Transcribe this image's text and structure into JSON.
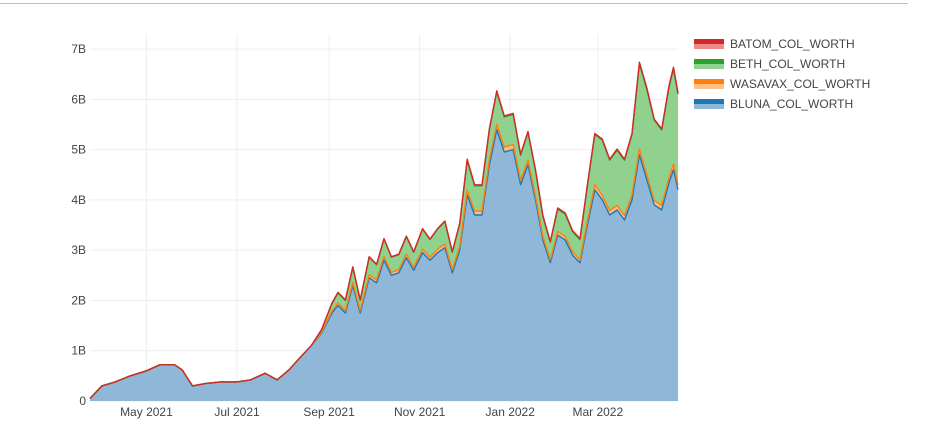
{
  "chart_data": {
    "type": "area",
    "stacked": true,
    "title": "",
    "xlabel": "",
    "ylabel": "",
    "x_ticks": [
      {
        "label": "May 2021",
        "date": "2021-05-01"
      },
      {
        "label": "Jul 2021",
        "date": "2021-07-01"
      },
      {
        "label": "Sep 2021",
        "date": "2021-09-01"
      },
      {
        "label": "Nov 2021",
        "date": "2021-11-01"
      },
      {
        "label": "Jan 2022",
        "date": "2022-01-01"
      },
      {
        "label": "Mar 2022",
        "date": "2022-03-01"
      }
    ],
    "xlim": [
      "2021-03-24",
      "2022-04-24"
    ],
    "y_ticks": [
      {
        "label": "0",
        "value": 0
      },
      {
        "label": "1B",
        "value": 1
      },
      {
        "label": "2B",
        "value": 2
      },
      {
        "label": "3B",
        "value": 3
      },
      {
        "label": "4B",
        "value": 4
      },
      {
        "label": "5B",
        "value": 5
      },
      {
        "label": "6B",
        "value": 6
      },
      {
        "label": "7B",
        "value": 7
      }
    ],
    "ylim": [
      0,
      7.3
    ],
    "y_unit": "B",
    "grid": true,
    "legend_position": "top-right",
    "x": [
      "2021-03-24",
      "2021-04-01",
      "2021-04-10",
      "2021-04-20",
      "2021-05-01",
      "2021-05-10",
      "2021-05-20",
      "2021-05-25",
      "2021-06-01",
      "2021-06-10",
      "2021-06-20",
      "2021-07-01",
      "2021-07-10",
      "2021-07-20",
      "2021-07-28",
      "2021-08-05",
      "2021-08-12",
      "2021-08-20",
      "2021-08-27",
      "2021-09-03",
      "2021-09-07",
      "2021-09-12",
      "2021-09-17",
      "2021-09-22",
      "2021-09-28",
      "2021-10-03",
      "2021-10-08",
      "2021-10-13",
      "2021-10-18",
      "2021-10-23",
      "2021-10-28",
      "2021-11-03",
      "2021-11-08",
      "2021-11-13",
      "2021-11-18",
      "2021-11-23",
      "2021-11-28",
      "2021-12-03",
      "2021-12-08",
      "2021-12-13",
      "2021-12-18",
      "2021-12-23",
      "2021-12-28",
      "2022-01-03",
      "2022-01-08",
      "2022-01-13",
      "2022-01-18",
      "2022-01-23",
      "2022-01-28",
      "2022-02-02",
      "2022-02-07",
      "2022-02-12",
      "2022-02-17",
      "2022-02-22",
      "2022-02-27",
      "2022-03-04",
      "2022-03-09",
      "2022-03-14",
      "2022-03-19",
      "2022-03-24",
      "2022-03-29",
      "2022-04-03",
      "2022-04-08",
      "2022-04-13",
      "2022-04-18",
      "2022-04-21",
      "2022-04-24"
    ],
    "series": [
      {
        "name": "BLUNA_COL_WORTH",
        "color": "#1f77b4",
        "values": [
          0.05,
          0.3,
          0.38,
          0.5,
          0.6,
          0.72,
          0.72,
          0.62,
          0.3,
          0.35,
          0.38,
          0.38,
          0.42,
          0.55,
          0.42,
          0.62,
          0.85,
          1.1,
          1.35,
          1.75,
          1.9,
          1.75,
          2.3,
          1.75,
          2.45,
          2.35,
          2.8,
          2.5,
          2.55,
          2.85,
          2.6,
          2.95,
          2.8,
          2.95,
          3.05,
          2.55,
          3.0,
          4.1,
          3.7,
          3.7,
          4.7,
          5.4,
          4.95,
          5.0,
          4.3,
          4.7,
          4.0,
          3.2,
          2.75,
          3.3,
          3.2,
          2.9,
          2.75,
          3.5,
          4.2,
          4.0,
          3.7,
          3.8,
          3.6,
          4.0,
          4.9,
          4.4,
          3.9,
          3.8,
          4.35,
          4.6,
          4.2
        ]
      },
      {
        "name": "WASAVAX_COL_WORTH",
        "color": "#ff7f0e",
        "values": [
          0,
          0,
          0,
          0,
          0,
          0,
          0,
          0,
          0,
          0,
          0,
          0,
          0,
          0,
          0,
          0,
          0,
          0,
          0.02,
          0.04,
          0.05,
          0.05,
          0.06,
          0.05,
          0.06,
          0.06,
          0.07,
          0.06,
          0.06,
          0.07,
          0.06,
          0.07,
          0.06,
          0.07,
          0.07,
          0.06,
          0.07,
          0.09,
          0.08,
          0.08,
          0.1,
          0.1,
          0.1,
          0.1,
          0.09,
          0.09,
          0.08,
          0.07,
          0.06,
          0.07,
          0.07,
          0.07,
          0.06,
          0.08,
          0.1,
          0.09,
          0.09,
          0.09,
          0.09,
          0.1,
          0.11,
          0.1,
          0.09,
          0.09,
          0.1,
          0.11,
          0.1
        ]
      },
      {
        "name": "BETH_COL_WORTH",
        "color": "#2ca02c",
        "values": [
          0,
          0,
          0,
          0,
          0,
          0,
          0,
          0,
          0,
          0,
          0,
          0,
          0,
          0,
          0,
          0,
          0,
          0,
          0.05,
          0.15,
          0.2,
          0.2,
          0.3,
          0.2,
          0.35,
          0.3,
          0.35,
          0.3,
          0.3,
          0.35,
          0.3,
          0.4,
          0.35,
          0.4,
          0.45,
          0.35,
          0.45,
          0.6,
          0.5,
          0.5,
          0.6,
          0.65,
          0.6,
          0.6,
          0.5,
          0.55,
          0.5,
          0.4,
          0.35,
          0.45,
          0.45,
          0.4,
          0.4,
          0.7,
          1.0,
          1.1,
          1.0,
          1.1,
          1.1,
          1.2,
          1.7,
          1.7,
          1.6,
          1.5,
          1.8,
          1.9,
          1.8
        ]
      },
      {
        "name": "BATOM_COL_WORTH",
        "color": "#d62728",
        "values": [
          0,
          0,
          0,
          0,
          0,
          0,
          0,
          0,
          0,
          0,
          0,
          0,
          0,
          0,
          0,
          0,
          0,
          0,
          0,
          0.01,
          0.01,
          0.01,
          0.01,
          0.01,
          0.01,
          0.01,
          0.01,
          0.01,
          0.01,
          0.01,
          0.01,
          0.01,
          0.01,
          0.01,
          0.01,
          0.01,
          0.01,
          0.02,
          0.02,
          0.02,
          0.02,
          0.02,
          0.02,
          0.02,
          0.02,
          0.02,
          0.02,
          0.02,
          0.01,
          0.02,
          0.02,
          0.02,
          0.02,
          0.02,
          0.02,
          0.02,
          0.02,
          0.02,
          0.02,
          0.02,
          0.03,
          0.03,
          0.02,
          0.02,
          0.03,
          0.03,
          0.03
        ]
      }
    ],
    "legend": [
      {
        "name": "BATOM_COL_WORTH",
        "color": "#d62728",
        "light": "#ea8a8a"
      },
      {
        "name": "BETH_COL_WORTH",
        "color": "#2ca02c",
        "light": "#8fd28f"
      },
      {
        "name": "WASAVAX_COL_WORTH",
        "color": "#ff7f0e",
        "light": "#ffc08a"
      },
      {
        "name": "BLUNA_COL_WORTH",
        "color": "#1f77b4",
        "light": "#8fb8d8"
      }
    ]
  }
}
